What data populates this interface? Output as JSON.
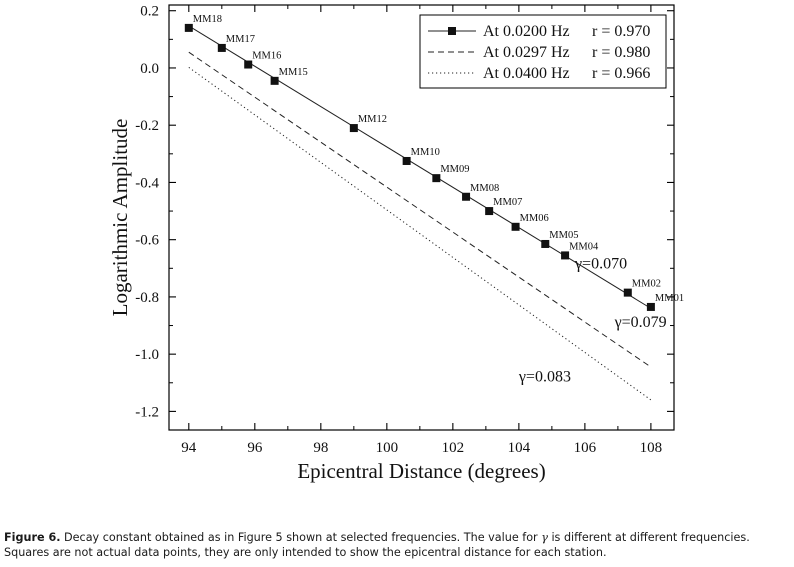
{
  "chart_data": {
    "type": "line",
    "xlabel": "Epicentral  Distance (degrees)",
    "ylabel": "Logarithmic  Amplitude",
    "xlim": [
      93.4,
      108.7
    ],
    "ylim": [
      -1.265,
      0.22
    ],
    "xticks": [
      94,
      96,
      98,
      100,
      102,
      104,
      106,
      108
    ],
    "yticks": [
      0.2,
      0.0,
      -0.2,
      -0.4,
      -0.6,
      -0.8,
      -1.0,
      -1.2
    ],
    "ytick_labels": [
      "0.2",
      "0.0",
      "-0.2",
      "-0.4",
      "-0.6",
      "-0.8",
      "-1.0",
      "-1.2"
    ],
    "legend_position": "top-right",
    "series": [
      {
        "name": "At 0.0200 Hz",
        "r_label": "r = 0.970",
        "style": "solid",
        "marker": "square",
        "x": [
          94,
          108
        ],
        "y": [
          0.147,
          -0.84
        ]
      },
      {
        "name": "At 0.0297 Hz",
        "r_label": "r = 0.980",
        "style": "dashed",
        "marker": "none",
        "x": [
          94,
          108
        ],
        "y": [
          0.055,
          -1.045
        ]
      },
      {
        "name": "At 0.0400 Hz",
        "r_label": "r = 0.966",
        "style": "dotted",
        "marker": "none",
        "x": [
          94,
          108
        ],
        "y": [
          0.002,
          -1.16
        ]
      }
    ],
    "stations": [
      {
        "name": "MM18",
        "x": 94.0,
        "y": 0.14
      },
      {
        "name": "MM17",
        "x": 95.0,
        "y": 0.07
      },
      {
        "name": "MM16",
        "x": 95.8,
        "y": 0.012
      },
      {
        "name": "MM15",
        "x": 96.6,
        "y": -0.045
      },
      {
        "name": "MM12",
        "x": 99.0,
        "y": -0.21
      },
      {
        "name": "MM10",
        "x": 100.6,
        "y": -0.325
      },
      {
        "name": "MM09",
        "x": 101.5,
        "y": -0.385
      },
      {
        "name": "MM08",
        "x": 102.4,
        "y": -0.45
      },
      {
        "name": "MM07",
        "x": 103.1,
        "y": -0.5
      },
      {
        "name": "MM06",
        "x": 103.9,
        "y": -0.555
      },
      {
        "name": "MM05",
        "x": 104.8,
        "y": -0.615
      },
      {
        "name": "MM04",
        "x": 105.4,
        "y": -0.655
      },
      {
        "name": "MM02",
        "x": 107.3,
        "y": -0.785
      },
      {
        "name": "MM01",
        "x": 108.0,
        "y": -0.835
      }
    ],
    "annotations": [
      {
        "text": "γ=0.070",
        "x": 105.7,
        "y": -0.7
      },
      {
        "text": "γ=0.079",
        "x": 106.9,
        "y": -0.905
      },
      {
        "text": "γ=0.083",
        "x": 104.0,
        "y": -1.095
      }
    ]
  },
  "caption": {
    "label": "Figure 6.",
    "text_before_symbol": " Decay constant obtained as in Figure 5 shown at selected frequencies. The value for ",
    "symbol": "γ",
    "text_after_symbol": " is different at different frequencies. Squares are not actual data points, they are only intended to show the epicentral distance for each station."
  }
}
